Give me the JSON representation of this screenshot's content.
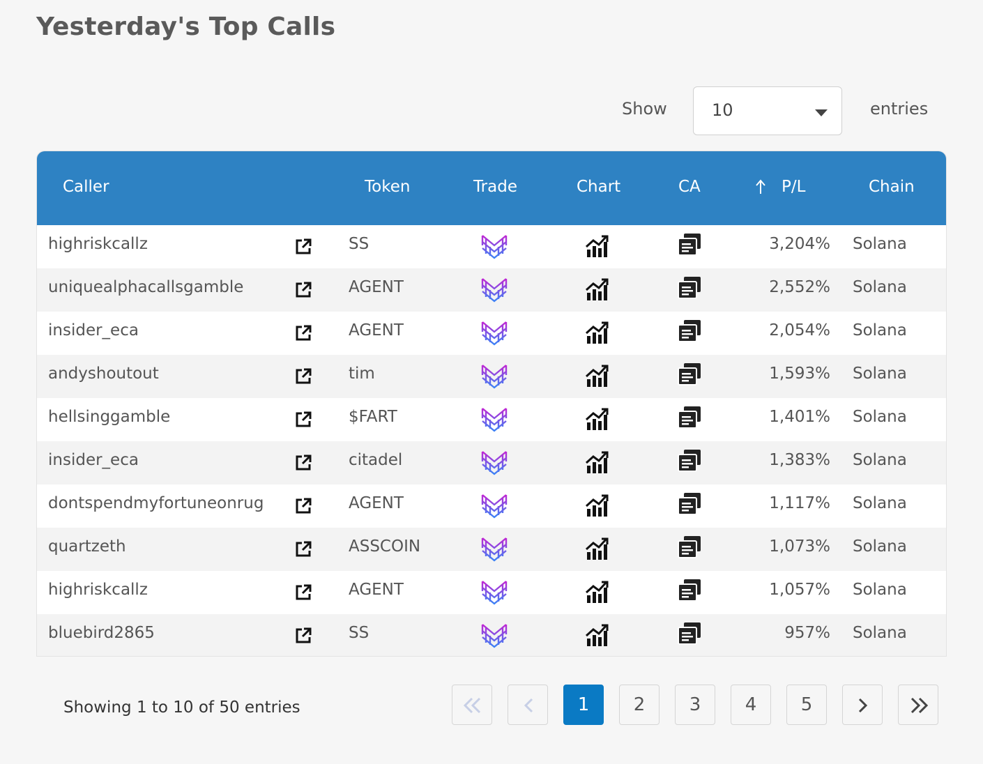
{
  "page_title": "Yesterday's Top Calls",
  "length_menu": {
    "show_label": "Show",
    "selected": "10",
    "entries_label": "entries"
  },
  "table": {
    "headers": {
      "caller": "Caller",
      "token": "Token",
      "trade": "Trade",
      "chart": "Chart",
      "ca": "CA",
      "pl": "P/L",
      "chain": "Chain"
    },
    "sort_icon": "arrow-up-icon",
    "rows": [
      {
        "caller": "highriskcallz",
        "token": "SS",
        "pl": "3,204%",
        "chain": "Solana"
      },
      {
        "caller": "uniquealphacallsgamble",
        "token": "AGENT",
        "pl": "2,552%",
        "chain": "Solana"
      },
      {
        "caller": "insider_eca",
        "token": "AGENT",
        "pl": "2,054%",
        "chain": "Solana"
      },
      {
        "caller": "andyshoutout",
        "token": "tim",
        "pl": "1,593%",
        "chain": "Solana"
      },
      {
        "caller": "hellsinggamble",
        "token": "$FART",
        "pl": "1,401%",
        "chain": "Solana"
      },
      {
        "caller": "insider_eca",
        "token": "citadel",
        "pl": "1,383%",
        "chain": "Solana"
      },
      {
        "caller": "dontspendmyfortuneonrug",
        "token": "AGENT",
        "pl": "1,117%",
        "chain": "Solana"
      },
      {
        "caller": "quartzeth",
        "token": "ASSCOIN",
        "pl": "1,073%",
        "chain": "Solana"
      },
      {
        "caller": "highriskcallz",
        "token": "AGENT",
        "pl": "1,057%",
        "chain": "Solana"
      },
      {
        "caller": "bluebird2865",
        "token": "SS",
        "pl": "957%",
        "chain": "Solana"
      }
    ],
    "row_icons": {
      "caller_link": "external-link-icon",
      "trade": "trade-platform-logo-icon",
      "chart": "chart-icon",
      "ca": "copy-icon"
    }
  },
  "info_text": "Showing 1 to 10 of 50 entries",
  "pagination": {
    "first_icon": "double-chevron-left-icon",
    "prev_icon": "chevron-left-icon",
    "pages": [
      "1",
      "2",
      "3",
      "4",
      "5"
    ],
    "current": "1",
    "next_icon": "chevron-right-icon",
    "last_icon": "double-chevron-right-icon"
  },
  "colors": {
    "header_bg": "#2e82c3",
    "active_page": "#0a7ac4",
    "page_bg": "#f6f6f6"
  }
}
